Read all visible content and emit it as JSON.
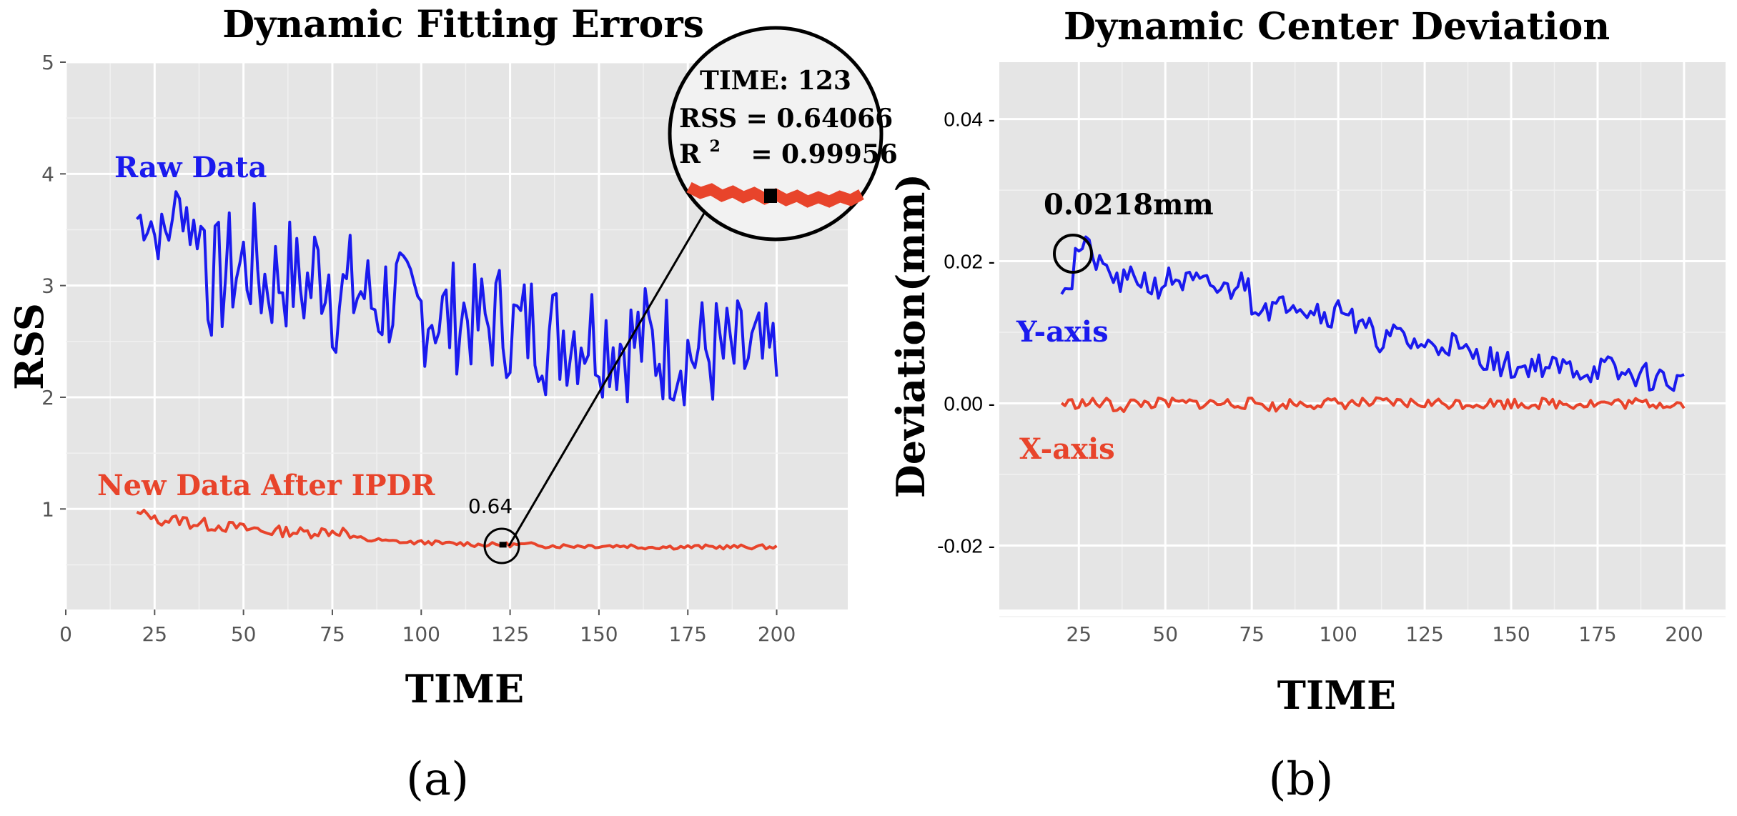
{
  "chart_data": [
    {
      "type": "line",
      "title": "Dynamic Fitting Errors",
      "xlabel": "TIME",
      "ylabel": "RSS",
      "xlim": [
        0,
        220
      ],
      "ylim": [
        0.1,
        5
      ],
      "xticks": [
        0,
        25,
        50,
        75,
        100,
        125,
        150,
        175,
        200
      ],
      "yticks": [
        1,
        2,
        3,
        4,
        5
      ],
      "grid": true,
      "panel_label": "(a)",
      "series": [
        {
          "name": "Raw Data",
          "color": "#1a1aee",
          "x": [
            20,
            25,
            30,
            35,
            40,
            45,
            50,
            55,
            60,
            65,
            70,
            75,
            80,
            85,
            90,
            95,
            100,
            105,
            110,
            115,
            120,
            125,
            130,
            135,
            140,
            145,
            150,
            155,
            160,
            165,
            170,
            175,
            180,
            185,
            190,
            195,
            200
          ],
          "y": [
            3.6,
            3.45,
            3.7,
            3.5,
            3.05,
            3.15,
            3.2,
            3.05,
            3.1,
            3.0,
            3.15,
            2.9,
            2.95,
            2.85,
            2.9,
            2.75,
            2.8,
            2.7,
            2.75,
            2.65,
            2.7,
            2.6,
            2.65,
            2.55,
            2.6,
            2.6,
            2.55,
            2.5,
            2.5,
            2.45,
            2.45,
            2.4,
            2.4,
            2.35,
            2.35,
            2.3,
            2.25
          ],
          "noise_high": [
            3.85,
            3.8,
            3.75,
            3.7,
            3.6,
            3.5,
            3.45,
            3.4,
            3.3,
            3.2,
            3.15,
            3.1,
            3.0,
            2.95,
            2.9
          ],
          "noise_low": [
            3.2,
            2.5,
            2.4,
            2.3,
            2.2,
            2.15,
            2.1,
            2.05,
            2.0,
            1.95,
            1.9
          ]
        },
        {
          "name": "New Data After IPDR",
          "color": "#e8442b",
          "x": [
            20,
            25,
            30,
            35,
            40,
            45,
            50,
            55,
            60,
            65,
            70,
            75,
            80,
            85,
            90,
            95,
            100,
            105,
            110,
            115,
            120,
            125,
            130,
            135,
            140,
            145,
            150,
            155,
            160,
            165,
            170,
            175,
            180,
            185,
            190,
            195,
            200
          ],
          "y": [
            0.95,
            0.9,
            0.9,
            0.87,
            0.85,
            0.84,
            0.82,
            0.8,
            0.8,
            0.79,
            0.8,
            0.8,
            0.74,
            0.72,
            0.71,
            0.7,
            0.7,
            0.69,
            0.69,
            0.68,
            0.68,
            0.68,
            0.68,
            0.67,
            0.67,
            0.67,
            0.67,
            0.67,
            0.66,
            0.66,
            0.66,
            0.66,
            0.66,
            0.66,
            0.66,
            0.66,
            0.66
          ]
        }
      ],
      "annotation_point": {
        "x": 123,
        "y": 0.68,
        "label": "0.64"
      },
      "zoom_box": {
        "time_label": "TIME: 123",
        "rss_label": "RSS = 0.64066",
        "r2_label_prefix": "R",
        "r2_superscript": "2",
        "r2_label_value": "= 0.99956"
      }
    },
    {
      "type": "line",
      "title": "Dynamic Center Deviation",
      "xlabel": "TIME",
      "ylabel": "Deviation(mm)",
      "xlim": [
        2,
        212
      ],
      "ylim": [
        -0.029,
        0.048
      ],
      "xticks": [
        25,
        50,
        75,
        100,
        125,
        150,
        175,
        200
      ],
      "ytick_values": [
        0.04,
        0.02,
        0.0,
        -0.02
      ],
      "ytick_labels": [
        "0.04 -",
        "0.02 -",
        "0.00 -",
        "-0.02 -"
      ],
      "grid": true,
      "panel_label": "(b)",
      "series": [
        {
          "name": "Y-axis",
          "color": "#1a1aee",
          "x": [
            20,
            25,
            30,
            35,
            40,
            45,
            50,
            55,
            60,
            65,
            70,
            75,
            80,
            85,
            90,
            95,
            100,
            105,
            110,
            115,
            120,
            125,
            130,
            135,
            140,
            145,
            150,
            155,
            160,
            165,
            170,
            175,
            180,
            185,
            190,
            195,
            200
          ],
          "y": [
            0.017,
            0.0218,
            0.019,
            0.017,
            0.0175,
            0.0165,
            0.0175,
            0.017,
            0.0165,
            0.016,
            0.017,
            0.014,
            0.0135,
            0.0145,
            0.0135,
            0.0125,
            0.0135,
            0.0105,
            0.009,
            0.0095,
            0.0085,
            0.008,
            0.0085,
            0.007,
            0.0065,
            0.0055,
            0.005,
            0.0055,
            0.005,
            0.005,
            0.0045,
            0.005,
            0.004,
            0.004,
            0.0035,
            0.003,
            0.003
          ]
        },
        {
          "name": "X-axis",
          "color": "#e8442b",
          "x": [
            20,
            25,
            30,
            35,
            40,
            45,
            50,
            55,
            60,
            65,
            70,
            75,
            80,
            85,
            90,
            95,
            100,
            105,
            110,
            115,
            120,
            125,
            130,
            135,
            140,
            145,
            150,
            155,
            160,
            165,
            170,
            175,
            180,
            185,
            190,
            195,
            200
          ],
          "y": [
            0.0,
            0.0,
            0.0,
            -0.0005,
            0.0,
            0.0,
            0.0,
            0.0,
            0.0,
            0.0,
            0.0,
            0.0,
            -0.0005,
            0.0,
            0.0,
            0.0,
            0.0,
            0.0,
            0.0,
            0.0,
            0.0,
            0.0,
            0.0,
            0.0,
            0.0,
            0.0,
            0.0,
            0.0,
            0.0,
            0.0,
            0.0,
            0.0,
            0.0,
            0.0,
            0.0,
            0.0,
            -0.0005
          ]
        }
      ],
      "annotation_point": {
        "x": 24,
        "y": 0.0214,
        "label": "0.0218mm"
      }
    }
  ]
}
